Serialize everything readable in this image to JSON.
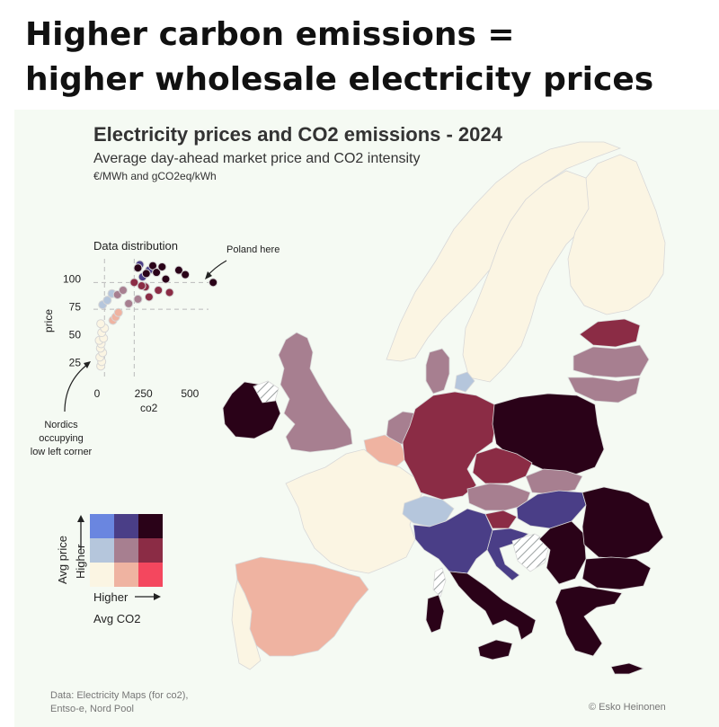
{
  "headline": {
    "line1": "Higher carbon emissions =",
    "line2": "higher wholesale electricity prices"
  },
  "chart": {
    "title": "Electricity prices and CO2 emissions - 2024",
    "subtitle": "Average day-ahead market price and CO2 intensity",
    "units": "€/MWh and gCO2eq/kWh"
  },
  "inset": {
    "title": "Data distribution",
    "xlabel": "co2",
    "ylabel": "price",
    "poland_note": "Poland here",
    "nordic_note": [
      "Nordics",
      "occupying",
      "low left corner"
    ]
  },
  "legend": {
    "y_label": "Avg price",
    "y_arrow_label": "Higher",
    "x_arrow_label": "Higher",
    "x_label": "Avg CO2",
    "colors": [
      [
        "#fbf5e3",
        "#efb3a1",
        "#f4475e"
      ],
      [
        "#b5c6dc",
        "#a77f90",
        "#8b2c45"
      ],
      [
        "#6a86e0",
        "#4a3e87",
        "#2a0218"
      ]
    ]
  },
  "footer": {
    "source_line1": "Data: Electricity Maps (for co2),",
    "source_line2": "Entso-e, Nord Pool",
    "credit": "© Esko Heinonen"
  },
  "chart_data": {
    "type": "scatter",
    "title": "Data distribution",
    "xlabel": "co2",
    "ylabel": "price",
    "xlim": [
      0,
      600
    ],
    "ylim": [
      15,
      115
    ],
    "x_ticks": [
      0,
      250,
      500
    ],
    "y_ticks": [
      25,
      50,
      75,
      100
    ],
    "thresholds": {
      "x": [
        40,
        200
      ],
      "y": [
        73,
        97
      ]
    },
    "points": [
      {
        "x": 20,
        "y": 22,
        "c": "#fbf5e3"
      },
      {
        "x": 25,
        "y": 26,
        "c": "#fbf5e3"
      },
      {
        "x": 15,
        "y": 30,
        "c": "#fbf5e3"
      },
      {
        "x": 30,
        "y": 34,
        "c": "#fbf5e3"
      },
      {
        "x": 18,
        "y": 38,
        "c": "#fbf5e3"
      },
      {
        "x": 22,
        "y": 42,
        "c": "#fbf5e3"
      },
      {
        "x": 12,
        "y": 45,
        "c": "#fbf5e3"
      },
      {
        "x": 35,
        "y": 47,
        "c": "#fbf5e3"
      },
      {
        "x": 25,
        "y": 52,
        "c": "#fbf5e3"
      },
      {
        "x": 40,
        "y": 56,
        "c": "#fbf5e3"
      },
      {
        "x": 20,
        "y": 60,
        "c": "#fbf5e3"
      },
      {
        "x": 85,
        "y": 63,
        "c": "#efb3a1"
      },
      {
        "x": 100,
        "y": 66,
        "c": "#efb3a1"
      },
      {
        "x": 115,
        "y": 70,
        "c": "#efb3a1"
      },
      {
        "x": 30,
        "y": 77,
        "c": "#b5c6dc"
      },
      {
        "x": 55,
        "y": 81,
        "c": "#b5c6dc"
      },
      {
        "x": 80,
        "y": 87,
        "c": "#b5c6dc"
      },
      {
        "x": 170,
        "y": 78,
        "c": "#a77f90"
      },
      {
        "x": 220,
        "y": 82,
        "c": "#a77f90"
      },
      {
        "x": 110,
        "y": 86,
        "c": "#a77f90"
      },
      {
        "x": 140,
        "y": 90,
        "c": "#a77f90"
      },
      {
        "x": 280,
        "y": 84,
        "c": "#8b2c45"
      },
      {
        "x": 330,
        "y": 90,
        "c": "#8b2c45"
      },
      {
        "x": 260,
        "y": 93,
        "c": "#8b2c45"
      },
      {
        "x": 390,
        "y": 88,
        "c": "#8b2c45"
      },
      {
        "x": 200,
        "y": 97,
        "c": "#8b2c45"
      },
      {
        "x": 240,
        "y": 94,
        "c": "#8b2c45"
      },
      {
        "x": 230,
        "y": 113,
        "c": "#4a3e87"
      },
      {
        "x": 280,
        "y": 108,
        "c": "#4a3e87"
      },
      {
        "x": 245,
        "y": 102,
        "c": "#4a3e87"
      },
      {
        "x": 220,
        "y": 110,
        "c": "#2a0218"
      },
      {
        "x": 300,
        "y": 112,
        "c": "#2a0218"
      },
      {
        "x": 265,
        "y": 105,
        "c": "#2a0218"
      },
      {
        "x": 320,
        "y": 106,
        "c": "#2a0218"
      },
      {
        "x": 350,
        "y": 111,
        "c": "#2a0218"
      },
      {
        "x": 440,
        "y": 108,
        "c": "#2a0218"
      },
      {
        "x": 475,
        "y": 104,
        "c": "#2a0218"
      },
      {
        "x": 370,
        "y": 100,
        "c": "#2a0218"
      },
      {
        "x": 625,
        "y": 97,
        "c": "#2a0218"
      }
    ]
  },
  "map": {
    "regions": [
      {
        "name": "Norway",
        "color": "#fbf5e3"
      },
      {
        "name": "Sweden",
        "color": "#fbf5e3"
      },
      {
        "name": "Finland",
        "color": "#fbf5e3"
      },
      {
        "name": "Estonia",
        "color": "#8b2c45"
      },
      {
        "name": "Latvia",
        "color": "#a77f90"
      },
      {
        "name": "Lithuania",
        "color": "#a77f90"
      },
      {
        "name": "Ireland",
        "color": "#2a0218"
      },
      {
        "name": "Great Britain",
        "color": "#a77f90"
      },
      {
        "name": "Denmark",
        "color": "#a77f90"
      },
      {
        "name": "Netherlands",
        "color": "#a77f90"
      },
      {
        "name": "Belgium",
        "color": "#efb3a1"
      },
      {
        "name": "France",
        "color": "#fbf5e3"
      },
      {
        "name": "Spain",
        "color": "#efb3a1"
      },
      {
        "name": "Portugal",
        "color": "#fbf5e3"
      },
      {
        "name": "Germany",
        "color": "#8b2c45"
      },
      {
        "name": "Poland",
        "color": "#2a0218"
      },
      {
        "name": "Czechia",
        "color": "#8b2c45"
      },
      {
        "name": "Slovakia",
        "color": "#a77f90"
      },
      {
        "name": "Austria",
        "color": "#a77f90"
      },
      {
        "name": "Hungary",
        "color": "#4a3e87"
      },
      {
        "name": "Slovenia",
        "color": "#8b2c45"
      },
      {
        "name": "Croatia",
        "color": "#4a3e87"
      },
      {
        "name": "Switzerland",
        "color": "#b5c6dc"
      },
      {
        "name": "Italy",
        "color": "#4a3e87"
      },
      {
        "name": "Southern Italy",
        "color": "#2a0218"
      },
      {
        "name": "Sardinia",
        "color": "#2a0218"
      },
      {
        "name": "Sicily",
        "color": "#2a0218"
      },
      {
        "name": "Romania",
        "color": "#2a0218"
      },
      {
        "name": "Bulgaria",
        "color": "#2a0218"
      },
      {
        "name": "Serbia",
        "color": "#2a0218"
      },
      {
        "name": "Greece",
        "color": "#2a0218"
      },
      {
        "name": "Bosnia",
        "color": "#hatch"
      },
      {
        "name": "Northern Ireland",
        "color": "#hatch"
      },
      {
        "name": "Corsica",
        "color": "#hatch"
      }
    ]
  }
}
